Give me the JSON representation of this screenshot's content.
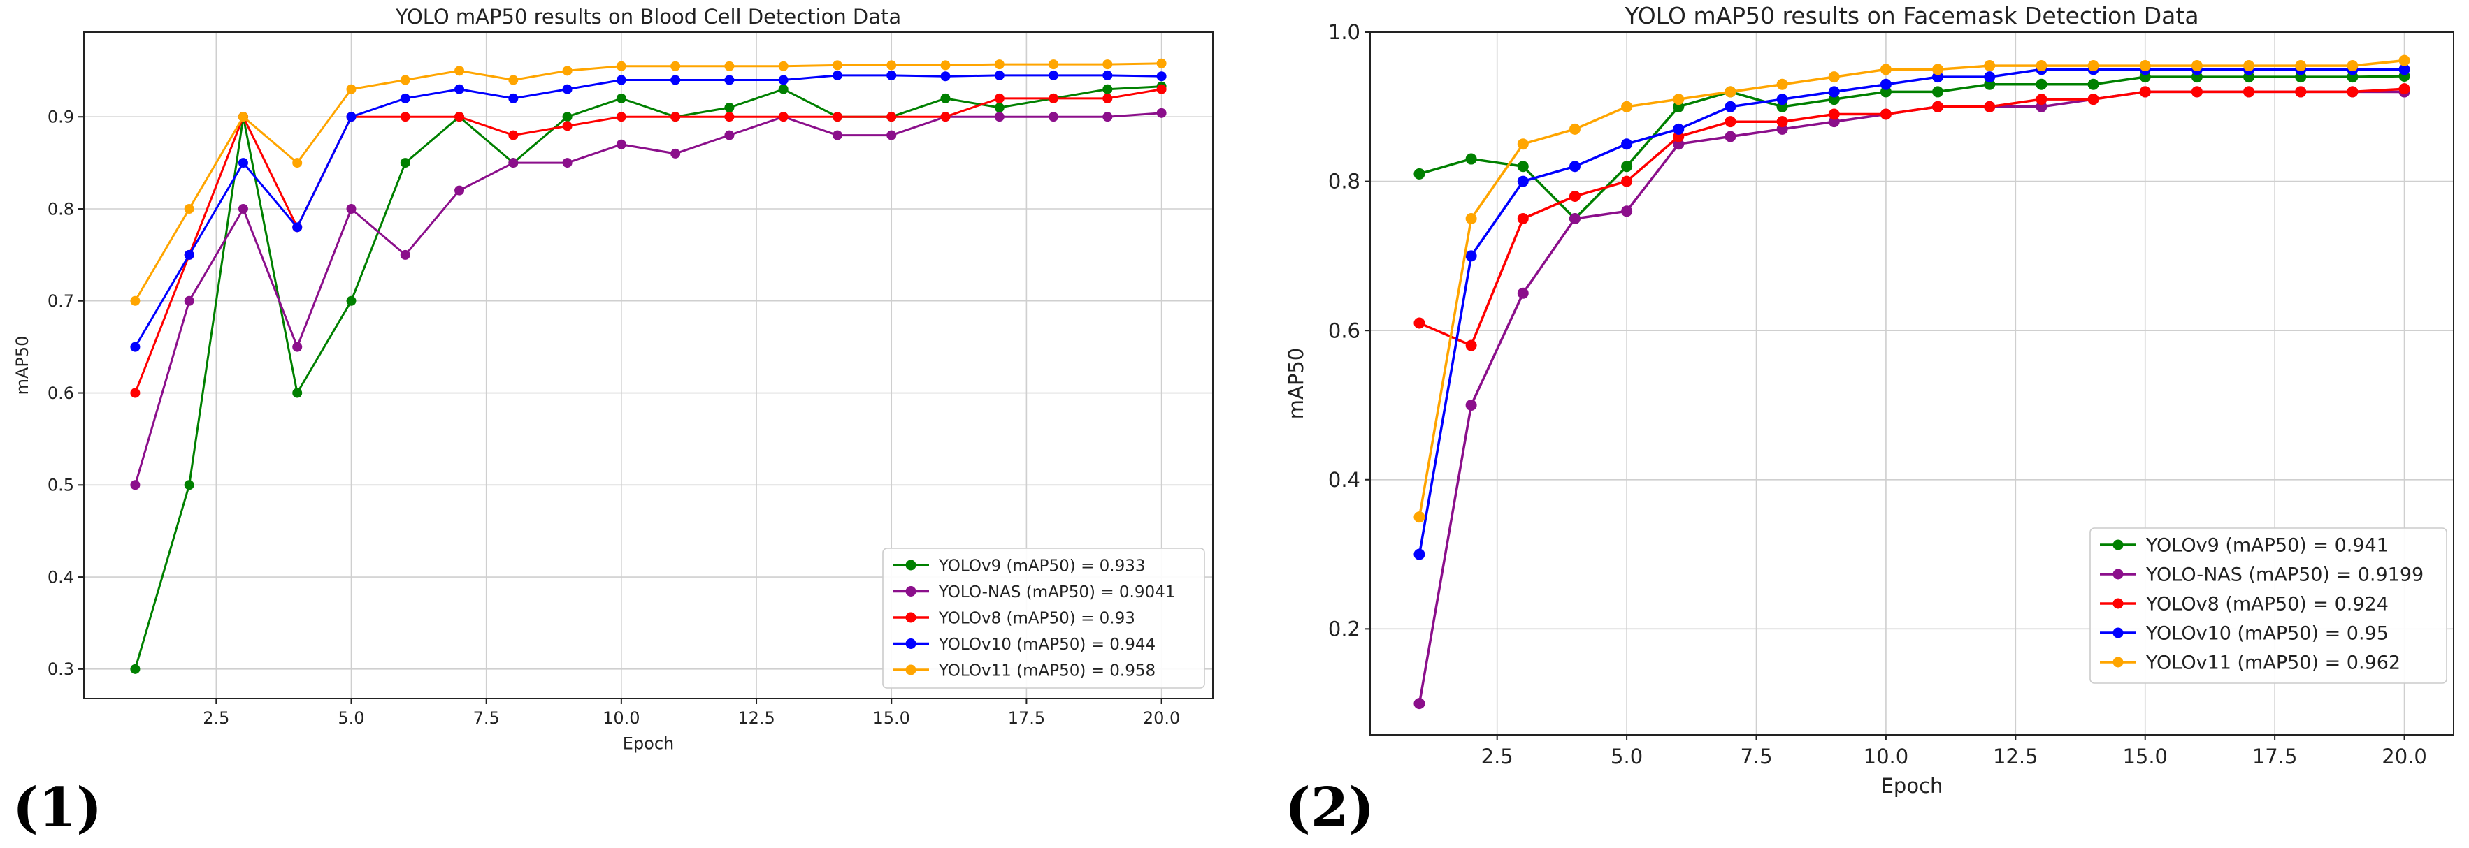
{
  "panel_labels": [
    "(1)",
    "(2)"
  ],
  "chart_data": [
    {
      "type": "line",
      "title": "YOLO mAP50 results on Blood Cell Detection Data",
      "xlabel": "Epoch",
      "ylabel": "mAP50",
      "xlim": [
        0.05,
        20.95
      ],
      "ylim": [
        0.268,
        0.992
      ],
      "xticks": [
        2.5,
        5.0,
        7.5,
        10.0,
        12.5,
        15.0,
        17.5,
        20.0
      ],
      "xtick_labels": [
        "2.5",
        "5.0",
        "7.5",
        "10.0",
        "12.5",
        "15.0",
        "17.5",
        "20.0"
      ],
      "yticks": [
        0.3,
        0.4,
        0.5,
        0.6,
        0.7,
        0.8,
        0.9
      ],
      "ytick_labels": [
        "0.3",
        "0.4",
        "0.5",
        "0.6",
        "0.7",
        "0.8",
        "0.9"
      ],
      "grid": true,
      "legend_position": "lower-right",
      "x": [
        1,
        2,
        3,
        4,
        5,
        6,
        7,
        8,
        9,
        10,
        11,
        12,
        13,
        14,
        15,
        16,
        17,
        18,
        19,
        20
      ],
      "series": [
        {
          "name": "YOLOv9 (mAP50) = 0.933",
          "color": "#008000",
          "values": [
            0.3,
            0.5,
            0.9,
            0.6,
            0.7,
            0.85,
            0.9,
            0.85,
            0.9,
            0.92,
            0.9,
            0.91,
            0.93,
            0.9,
            0.9,
            0.92,
            0.91,
            0.92,
            0.93,
            0.933
          ]
        },
        {
          "name": "YOLO-NAS (mAP50) = 0.9041",
          "color": "#8b0f8b",
          "values": [
            0.5,
            0.7,
            0.8,
            0.65,
            0.8,
            0.75,
            0.82,
            0.85,
            0.85,
            0.87,
            0.86,
            0.88,
            0.9,
            0.88,
            0.88,
            0.9,
            0.9,
            0.9,
            0.9,
            0.9041
          ]
        },
        {
          "name": "YOLOv8 (mAP50) = 0.93",
          "color": "#ff0000",
          "values": [
            0.6,
            0.75,
            0.9,
            0.78,
            0.9,
            0.9,
            0.9,
            0.88,
            0.89,
            0.9,
            0.9,
            0.9,
            0.9,
            0.9,
            0.9,
            0.9,
            0.92,
            0.92,
            0.92,
            0.93
          ]
        },
        {
          "name": "YOLOv10 (mAP50) = 0.944",
          "color": "#0000ff",
          "values": [
            0.65,
            0.75,
            0.85,
            0.78,
            0.9,
            0.92,
            0.93,
            0.92,
            0.93,
            0.94,
            0.94,
            0.94,
            0.94,
            0.945,
            0.945,
            0.944,
            0.945,
            0.945,
            0.945,
            0.944
          ]
        },
        {
          "name": "YOLOv11 (mAP50) = 0.958",
          "color": "#ffa500",
          "values": [
            0.7,
            0.8,
            0.9,
            0.85,
            0.93,
            0.94,
            0.95,
            0.94,
            0.95,
            0.955,
            0.955,
            0.955,
            0.955,
            0.956,
            0.956,
            0.956,
            0.957,
            0.957,
            0.957,
            0.958
          ]
        }
      ]
    },
    {
      "type": "line",
      "title": "YOLO mAP50 results on Facemask Detection Data",
      "xlabel": "Epoch",
      "ylabel": "mAP50",
      "xlim": [
        0.05,
        20.95
      ],
      "ylim": [
        0.058,
        1.0
      ],
      "xticks": [
        2.5,
        5.0,
        7.5,
        10.0,
        12.5,
        15.0,
        17.5,
        20.0
      ],
      "xtick_labels": [
        "2.5",
        "5.0",
        "7.5",
        "10.0",
        "12.5",
        "15.0",
        "17.5",
        "20.0"
      ],
      "yticks": [
        0.2,
        0.4,
        0.6,
        0.8,
        1.0
      ],
      "ytick_labels": [
        "0.2",
        "0.4",
        "0.6",
        "0.8",
        "1.0"
      ],
      "grid": true,
      "legend_position": "lower-right",
      "x": [
        1,
        2,
        3,
        4,
        5,
        6,
        7,
        8,
        9,
        10,
        11,
        12,
        13,
        14,
        15,
        16,
        17,
        18,
        19,
        20
      ],
      "series": [
        {
          "name": "YOLOv9 (mAP50) = 0.941",
          "color": "#008000",
          "values": [
            0.81,
            0.83,
            0.82,
            0.75,
            0.82,
            0.9,
            0.92,
            0.9,
            0.91,
            0.92,
            0.92,
            0.93,
            0.93,
            0.93,
            0.94,
            0.94,
            0.94,
            0.94,
            0.94,
            0.941
          ]
        },
        {
          "name": "YOLO-NAS (mAP50) = 0.9199",
          "color": "#8b0f8b",
          "values": [
            0.1,
            0.5,
            0.65,
            0.75,
            0.76,
            0.85,
            0.86,
            0.87,
            0.88,
            0.89,
            0.9,
            0.9,
            0.9,
            0.91,
            0.92,
            0.92,
            0.92,
            0.92,
            0.92,
            0.9199
          ]
        },
        {
          "name": "YOLOv8 (mAP50) = 0.924",
          "color": "#ff0000",
          "values": [
            0.61,
            0.58,
            0.75,
            0.78,
            0.8,
            0.86,
            0.88,
            0.88,
            0.89,
            0.89,
            0.9,
            0.9,
            0.91,
            0.91,
            0.92,
            0.92,
            0.92,
            0.92,
            0.92,
            0.924
          ]
        },
        {
          "name": "YOLOv10 (mAP50) = 0.95",
          "color": "#0000ff",
          "values": [
            0.3,
            0.7,
            0.8,
            0.82,
            0.85,
            0.87,
            0.9,
            0.91,
            0.92,
            0.93,
            0.94,
            0.94,
            0.95,
            0.95,
            0.95,
            0.95,
            0.95,
            0.95,
            0.95,
            0.95
          ]
        },
        {
          "name": "YOLOv11 (mAP50) = 0.962",
          "color": "#ffa500",
          "values": [
            0.35,
            0.75,
            0.85,
            0.87,
            0.9,
            0.91,
            0.92,
            0.93,
            0.94,
            0.95,
            0.95,
            0.955,
            0.955,
            0.955,
            0.955,
            0.955,
            0.955,
            0.955,
            0.955,
            0.962
          ]
        }
      ]
    }
  ]
}
